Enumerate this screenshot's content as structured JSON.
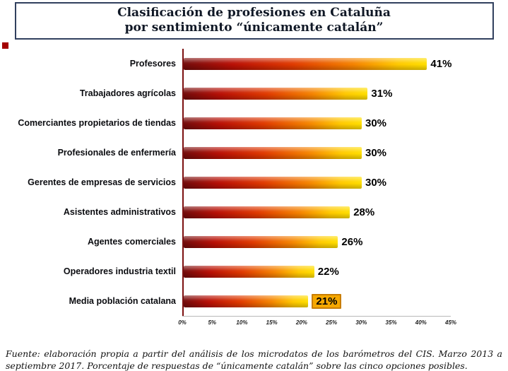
{
  "title": {
    "line1": "Clasificación de profesiones en Cataluña",
    "line2": "por sentimiento “únicamente catalán”"
  },
  "chart_data": {
    "type": "bar",
    "orientation": "horizontal",
    "title": "Clasificación de profesiones en Cataluña por sentimiento “únicamente catalán”",
    "categories": [
      "Profesores",
      "Trabajadores agrícolas",
      "Comerciantes propietarios de tiendas",
      "Profesionales de enfermería",
      "Gerentes de empresas de servicios",
      "Asistentes administrativos",
      "Agentes comerciales",
      "Operadores industria textil",
      "Media población catalana"
    ],
    "values": [
      41,
      31,
      30,
      30,
      30,
      28,
      26,
      22,
      21
    ],
    "value_labels": [
      "41%",
      "31%",
      "30%",
      "30%",
      "30%",
      "28%",
      "26%",
      "22%",
      "21%"
    ],
    "x_ticks": [
      "0%",
      "5%",
      "10%",
      "15%",
      "20%",
      "25%",
      "30%",
      "35%",
      "40%",
      "45%"
    ],
    "xlim": [
      0,
      45
    ],
    "tick_step": 5,
    "highlighted_category": "Media población catalana",
    "highlight_color": "#f6a800",
    "bar_gradient": [
      "#730b0b",
      "#e03a00",
      "#ffdf00"
    ],
    "axis_line_color": "#7c1010",
    "grid": false,
    "legend": false
  },
  "footer": {
    "text": "Fuente: elaboración propia a partir del análisis de los microdatos de los barómetros del CIS. Marzo 2013 a septiembre 2017. Porcentaje de respuestas de “únicamente catalán” sobre las cinco opciones posibles."
  }
}
